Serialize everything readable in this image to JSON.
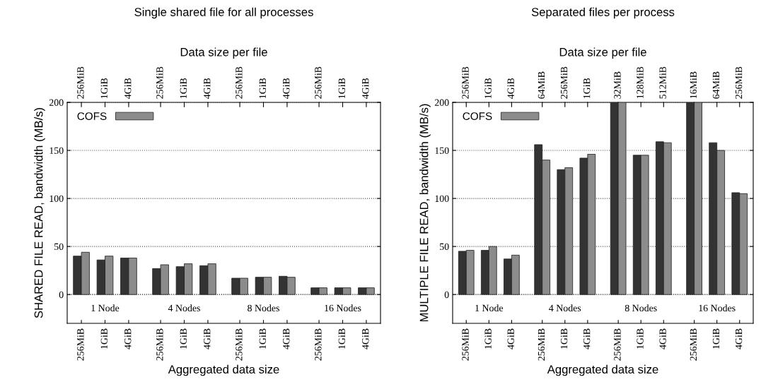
{
  "chart_data": [
    {
      "type": "bar",
      "title": "Single shared file for all processes",
      "x2label": "Data size per file",
      "xlabel": "Aggregated data size",
      "ylabel": "SHARED FILE READ, bandwidth (MB/s)",
      "categories": [
        "256MiB",
        "1GiB",
        "4GiB",
        "256MiB",
        "1GiB",
        "4GiB",
        "256MiB",
        "1GiB",
        "4GiB",
        "256MiB",
        "1GiB",
        "4GiB"
      ],
      "annotations": [
        "1 Node",
        "4 Nodes",
        "8 Nodes",
        "16 Nodes",
        "256MiB",
        "1GiB",
        "4GiB",
        "256MiB",
        "1GiB",
        "4GiB",
        "256MiB",
        "1GiB",
        "4GiB",
        "256MiB",
        "1GiB",
        "4GiB"
      ],
      "series": [
        {
          "color": "#333333",
          "values": [
            40,
            36,
            38,
            27,
            29,
            30,
            17,
            18,
            19,
            7,
            7,
            7
          ]
        },
        {
          "name": "COFS",
          "color": "#8c8c8c",
          "values": [
            44,
            40,
            38,
            31,
            32,
            32,
            17,
            18,
            18,
            7,
            7,
            7
          ]
        }
      ],
      "ylim": [
        -30,
        200
      ],
      "yticks": [
        0,
        50,
        100,
        150,
        200
      ],
      "grid": "y",
      "legend": "top left"
    },
    {
      "type": "bar",
      "title": "Separated files per process",
      "x2label": "Data size per file",
      "xlabel": "Aggregated data size",
      "ylabel": "MULTIPLE FILE READ, bandwidth (MB/s)",
      "categories": [
        "256MiB",
        "1GiB",
        "4GiB",
        "256MiB",
        "1GiB",
        "4GiB",
        "256MiB",
        "1GiB",
        "4GiB",
        "256MiB",
        "1GiB",
        "4GiB"
      ],
      "annotations": [
        "1 Node",
        "4 Nodes",
        "8 Nodes",
        "16 Nodes",
        "256MiB",
        "1GiB",
        "4GiB",
        "64MiB",
        "256MiB",
        "1GiB",
        "32MiB",
        "128MiB",
        "512MiB",
        "16MiB",
        "64MiB",
        "256MiB"
      ],
      "series": [
        {
          "color": "#333333",
          "values": [
            45,
            46,
            37,
            156,
            130,
            142,
            200,
            145,
            159,
            200,
            158,
            106
          ]
        },
        {
          "name": "COFS",
          "color": "#8c8c8c",
          "values": [
            46,
            50,
            41,
            140,
            132,
            146,
            200,
            145,
            158,
            200,
            150,
            105
          ]
        }
      ],
      "ylim": [
        -30,
        200
      ],
      "yticks": [
        0,
        50,
        100,
        150,
        200
      ],
      "grid": "y",
      "legend": "top left"
    }
  ]
}
